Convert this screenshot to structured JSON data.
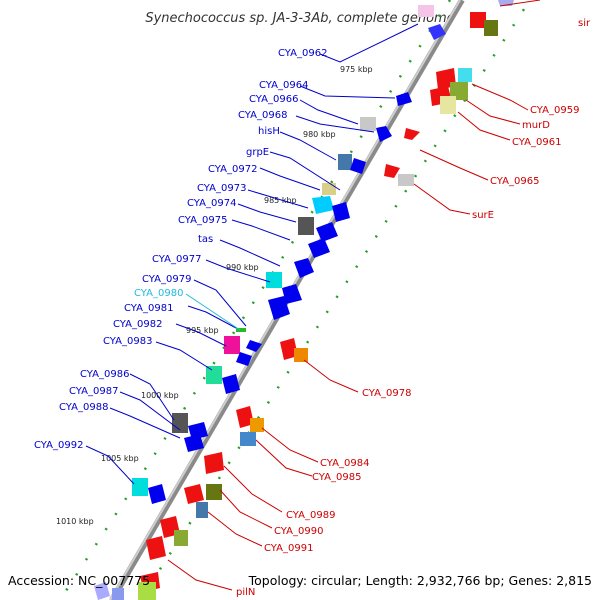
{
  "title": "Synechococcus sp. JA-3-3Ab, complete genome",
  "footer": {
    "accession": "Accession: NC_007775",
    "summary": "Topology: circular; Length: 2,932,766 bp; Genes: 2,815"
  },
  "colors": {
    "backbone": "#888888",
    "minus_label": "#0000cc",
    "plus_label": "#cc0000",
    "highlight_label": "#22bbdd",
    "tick": "#2a9d2a"
  },
  "kbp_ticks": [
    "975 kbp",
    "980 kbp",
    "985 kbp",
    "990 kbp",
    "995 kbp",
    "1000 kbp",
    "1005 kbp",
    "1010 kbp"
  ],
  "minus_labels": [
    "CYA_0962",
    "CYA_0964",
    "CYA_0966",
    "CYA_0968",
    "hisH",
    "grpE",
    "CYA_0972",
    "CYA_0973",
    "CYA_0974",
    "CYA_0975",
    "tas",
    "CYA_0977",
    "CYA_0979",
    "CYA_0980",
    "CYA_0981",
    "CYA_0982",
    "CYA_0983",
    "CYA_0986",
    "CYA_0987",
    "CYA_0988",
    "CYA_0992"
  ],
  "plus_labels": [
    "sir",
    "CYA_0959",
    "murD",
    "CYA_0961",
    "CYA_0965",
    "surE",
    "CYA_0978",
    "CYA_0984",
    "CYA_0985",
    "CYA_0989",
    "CYA_0990",
    "CYA_0991",
    "pilN"
  ]
}
